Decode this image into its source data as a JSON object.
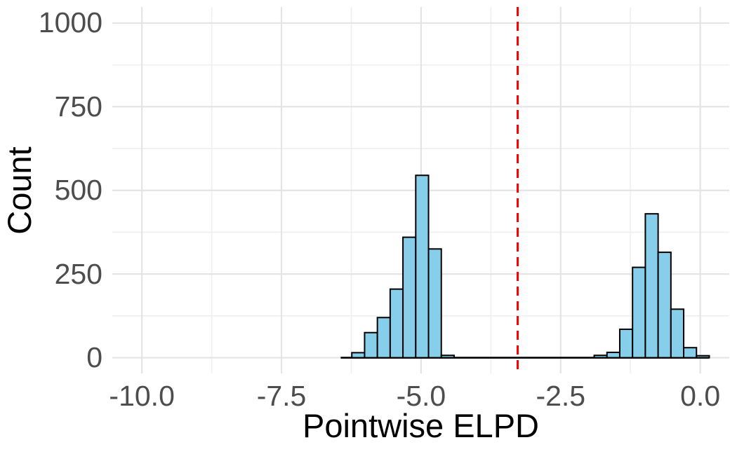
{
  "chart_data": {
    "type": "bar",
    "subtype": "histogram",
    "title": "",
    "xlabel": "Pointwise ELPD",
    "ylabel": "Count",
    "legend": "none",
    "grid": "on",
    "background": "#ffffff",
    "xlim": [
      -10.53,
      0.52
    ],
    "ylim": [
      -47,
      1048
    ],
    "x_ticks": [
      {
        "value": -10.0,
        "label": "-10.0"
      },
      {
        "value": -7.5,
        "label": "-7.5"
      },
      {
        "value": -5.0,
        "label": "-5.0"
      },
      {
        "value": -2.5,
        "label": "-2.5"
      },
      {
        "value": 0.0,
        "label": "0.0"
      }
    ],
    "x_minor_ticks": [
      -8.75,
      -6.25,
      -3.75,
      -1.25
    ],
    "y_ticks": [
      {
        "value": 0,
        "label": "0"
      },
      {
        "value": 250,
        "label": "250"
      },
      {
        "value": 500,
        "label": "500"
      },
      {
        "value": 750,
        "label": "750"
      },
      {
        "value": 1000,
        "label": "1000"
      }
    ],
    "y_minor_ticks": [
      125,
      375,
      625,
      875
    ],
    "binwidth": 0.229,
    "bins": [
      {
        "x": -6.126,
        "count": 15
      },
      {
        "x": -5.897,
        "count": 75
      },
      {
        "x": -5.668,
        "count": 120
      },
      {
        "x": -5.439,
        "count": 205
      },
      {
        "x": -5.21,
        "count": 360
      },
      {
        "x": -4.981,
        "count": 545
      },
      {
        "x": -4.752,
        "count": 325
      },
      {
        "x": -4.523,
        "count": 7
      },
      {
        "x": -1.785,
        "count": 7
      },
      {
        "x": -1.556,
        "count": 16
      },
      {
        "x": -1.327,
        "count": 85
      },
      {
        "x": -1.098,
        "count": 270
      },
      {
        "x": -0.869,
        "count": 430
      },
      {
        "x": -0.64,
        "count": 315
      },
      {
        "x": -0.411,
        "count": 145
      },
      {
        "x": -0.182,
        "count": 30
      },
      {
        "x": 0.047,
        "count": 6
      }
    ],
    "baseline_range": [
      -6.44,
      0.16
    ],
    "vline": {
      "x": -3.27,
      "style": "dashed",
      "color": "#ff0000",
      "width": 3
    },
    "colors": {
      "bar_fill": "#87CEEB",
      "bar_stroke": "#000000",
      "grid_major": "#e4e4e4",
      "grid_minor": "#efefef",
      "axis_text": "#4d4d4d",
      "title_text": "#000000"
    }
  }
}
